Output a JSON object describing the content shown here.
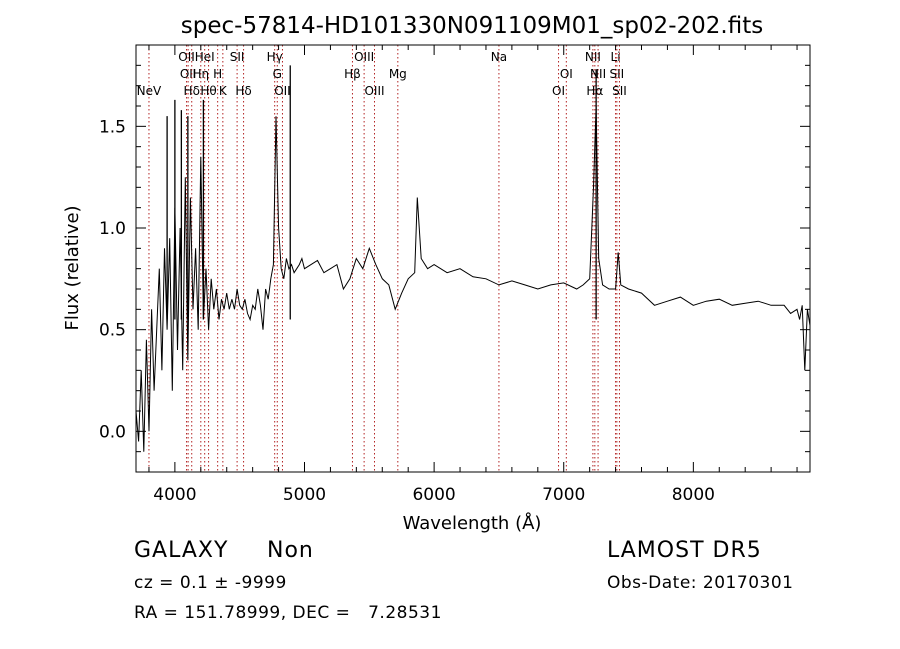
{
  "chart_data": {
    "type": "line",
    "title": "spec-57814-HD101330N091109M01_sp02-202.fits",
    "xlabel": "Wavelength (Å)",
    "ylabel": "Flux (relative)",
    "xlim": [
      3700,
      8900
    ],
    "ylim": [
      -0.2,
      1.9
    ],
    "x_ticks": [
      4000,
      5000,
      6000,
      7000,
      8000
    ],
    "y_ticks": [
      0.0,
      0.5,
      1.0,
      1.5
    ],
    "x_tick_labels": [
      "4000",
      "5000",
      "6000",
      "7000",
      "8000"
    ],
    "y_tick_labels": [
      "0.0",
      "0.5",
      "1.0",
      "1.5"
    ],
    "grid": false,
    "series": [
      {
        "color": "#000000",
        "x": [
          3700,
          3720,
          3740,
          3760,
          3780,
          3800,
          3820,
          3840,
          3860,
          3880,
          3900,
          3920,
          3940,
          3960,
          3980,
          4000,
          4020,
          4040,
          4060,
          4080,
          4100,
          4120,
          4140,
          4160,
          4180,
          4200,
          4220,
          4240,
          4260,
          4280,
          4300,
          4320,
          4340,
          4360,
          4380,
          4400,
          4420,
          4440,
          4460,
          4480,
          4500,
          4520,
          4540,
          4560,
          4580,
          4600,
          4620,
          4640,
          4660,
          4680,
          4700,
          4720,
          4740,
          4760,
          4780,
          4800,
          4820,
          4840,
          4860,
          4880,
          4900,
          4920,
          4940,
          4960,
          4980,
          5000,
          5050,
          5100,
          5150,
          5200,
          5250,
          5300,
          5350,
          5400,
          5450,
          5500,
          5550,
          5600,
          5650,
          5700,
          5750,
          5800,
          5850,
          5870,
          5900,
          5950,
          6000,
          6100,
          6200,
          6300,
          6400,
          6500,
          6600,
          6700,
          6800,
          6900,
          7000,
          7100,
          7150,
          7200,
          7230,
          7250,
          7270,
          7300,
          7350,
          7400,
          7420,
          7440,
          7500,
          7600,
          7700,
          7800,
          7900,
          8000,
          8100,
          8200,
          8300,
          8400,
          8500,
          8600,
          8700,
          8750,
          8800,
          8820,
          8840,
          8860,
          8880,
          8900
        ],
        "y": [
          0.1,
          -0.05,
          0.3,
          -0.1,
          0.45,
          0.0,
          0.6,
          0.2,
          0.5,
          0.8,
          0.3,
          0.9,
          0.5,
          0.95,
          0.2,
          1.1,
          0.4,
          1.0,
          0.3,
          1.25,
          0.35,
          1.15,
          0.6,
          0.9,
          0.5,
          1.35,
          0.55,
          0.8,
          0.5,
          0.75,
          0.6,
          0.7,
          0.55,
          0.65,
          0.6,
          0.68,
          0.6,
          0.65,
          0.6,
          0.7,
          0.62,
          0.6,
          0.65,
          0.58,
          0.55,
          0.62,
          0.6,
          0.7,
          0.62,
          0.5,
          0.7,
          0.65,
          0.75,
          0.82,
          1.55,
          1.0,
          0.8,
          0.75,
          0.85,
          0.8,
          0.82,
          0.78,
          0.8,
          0.82,
          0.85,
          0.8,
          0.82,
          0.84,
          0.78,
          0.8,
          0.82,
          0.7,
          0.75,
          0.85,
          0.8,
          0.9,
          0.82,
          0.75,
          0.72,
          0.6,
          0.68,
          0.75,
          0.78,
          1.15,
          0.85,
          0.8,
          0.82,
          0.78,
          0.8,
          0.76,
          0.75,
          0.72,
          0.74,
          0.72,
          0.7,
          0.72,
          0.73,
          0.7,
          0.72,
          0.75,
          1.2,
          1.6,
          0.85,
          0.72,
          0.7,
          0.7,
          0.88,
          0.72,
          0.7,
          0.68,
          0.62,
          0.64,
          0.66,
          0.62,
          0.64,
          0.65,
          0.62,
          0.63,
          0.64,
          0.62,
          0.62,
          0.58,
          0.6,
          0.55,
          0.62,
          0.3,
          0.6,
          0.52
        ]
      }
    ],
    "spikes": [
      {
        "x": 3940,
        "y": 1.55
      },
      {
        "x": 4000,
        "y": 1.63
      },
      {
        "x": 4050,
        "y": 1.58
      },
      {
        "x": 4100,
        "y": 1.55
      },
      {
        "x": 4220,
        "y": 1.63
      },
      {
        "x": 4890,
        "y": 1.8
      },
      {
        "x": 7250,
        "y": 1.78
      }
    ],
    "lines": [
      {
        "x": 3800,
        "label": "NeV",
        "row": 2
      },
      {
        "x": 4090,
        "label": "OII",
        "row": 0
      },
      {
        "x": 4102,
        "label": "OII",
        "row": 1
      },
      {
        "x": 4130,
        "label": "Hδ",
        "row": 2
      },
      {
        "x": 4200,
        "label": "Hη",
        "row": 1
      },
      {
        "x": 4230,
        "label": "HeI",
        "row": 0
      },
      {
        "x": 4260,
        "label": "Hθ",
        "row": 2
      },
      {
        "x": 4330,
        "label": "H",
        "row": 1
      },
      {
        "x": 4370,
        "label": "K",
        "row": 2
      },
      {
        "x": 4480,
        "label": "SII",
        "row": 0
      },
      {
        "x": 4530,
        "label": "Hδ",
        "row": 2
      },
      {
        "x": 4770,
        "label": "Hγ",
        "row": 0
      },
      {
        "x": 4790,
        "label": "G",
        "row": 1
      },
      {
        "x": 4830,
        "label": "OII",
        "row": 2
      },
      {
        "x": 5370,
        "label": "Hβ",
        "row": 1
      },
      {
        "x": 5460,
        "label": "OIII",
        "row": 0
      },
      {
        "x": 5540,
        "label": "OIII",
        "row": 2
      },
      {
        "x": 5720,
        "label": "Mg",
        "row": 1
      },
      {
        "x": 6500,
        "label": "Na",
        "row": 0
      },
      {
        "x": 6960,
        "label": "OI",
        "row": 2
      },
      {
        "x": 7020,
        "label": "OI",
        "row": 1
      },
      {
        "x": 7225,
        "label": "NII",
        "row": 0
      },
      {
        "x": 7240,
        "label": "Hα",
        "row": 2
      },
      {
        "x": 7265,
        "label": "NII",
        "row": 1
      },
      {
        "x": 7400,
        "label": "Li",
        "row": 0
      },
      {
        "x": 7410,
        "label": "SII",
        "row": 1
      },
      {
        "x": 7430,
        "label": "SII",
        "row": 2
      }
    ]
  },
  "footer": {
    "class_label": "GALAXY",
    "subclass": "Non",
    "survey": "LAMOST DR5",
    "cz_text": "cz = 0.1 ± -9999",
    "obs_date": "Obs-Date: 20170301",
    "radec_text": "RA = 151.78999, DEC =   7.28531"
  }
}
